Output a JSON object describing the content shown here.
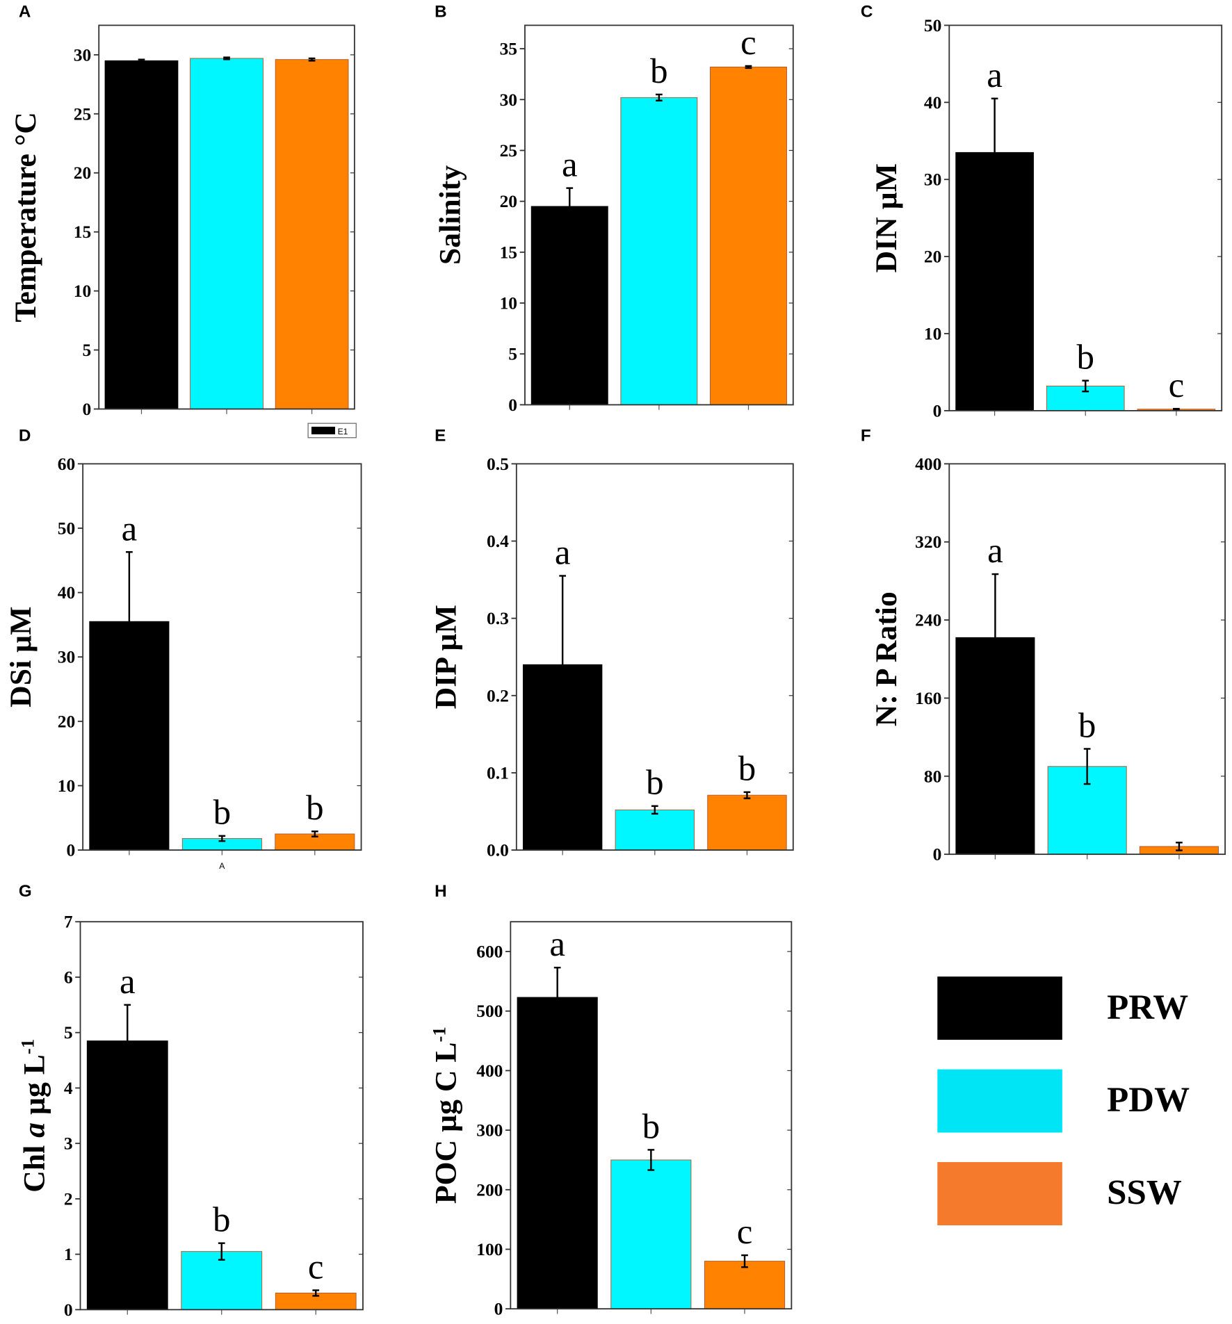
{
  "colors": {
    "PRW": "#000000",
    "PDW": "#00f7ff",
    "SSW": "#ff8200",
    "legend_PDW": "#00e5f5",
    "legend_SSW": "#f57a2c"
  },
  "legend": [
    {
      "label": "PRW",
      "color_key": "PRW"
    },
    {
      "label": "PDW",
      "color_key": "legend_PDW"
    },
    {
      "label": "SSW",
      "color_key": "legend_SSW"
    }
  ],
  "chart_data": [
    {
      "panel": "A",
      "type": "bar",
      "categories": [
        "PRW",
        "PDW",
        "SSW"
      ],
      "ylabel": [
        {
          "t": "Temperature °C"
        }
      ],
      "ylim": [
        0,
        32.5
      ],
      "ticks": [
        0,
        5,
        10,
        15,
        20,
        25,
        30
      ],
      "values": [
        29.5,
        29.7,
        29.6
      ],
      "errors": [
        0.1,
        0.08,
        0.1
      ],
      "letters": [
        "",
        "",
        ""
      ],
      "inset_legend": "E1"
    },
    {
      "panel": "B",
      "type": "bar",
      "categories": [
        "PRW",
        "PDW",
        "SSW"
      ],
      "ylabel": [
        {
          "t": "Salinity"
        }
      ],
      "ylim": [
        0,
        37.3
      ],
      "ticks": [
        0,
        5,
        10,
        15,
        20,
        25,
        30,
        35
      ],
      "values": [
        19.5,
        30.2,
        33.2
      ],
      "errors": [
        1.8,
        0.3,
        0.1
      ],
      "letters": [
        "a",
        "b",
        "c"
      ]
    },
    {
      "panel": "C",
      "type": "bar",
      "categories": [
        "PRW",
        "PDW",
        "SSW"
      ],
      "ylabel": [
        {
          "t": "DIN µM"
        }
      ],
      "ylim": [
        0,
        50
      ],
      "ticks": [
        0,
        10,
        20,
        30,
        40,
        50
      ],
      "values": [
        33.5,
        3.2,
        0.2
      ],
      "errors": [
        7.0,
        0.7,
        0.05
      ],
      "letters": [
        "a",
        "b",
        "c"
      ]
    },
    {
      "panel": "D",
      "type": "bar",
      "categories": [
        "PRW",
        "PDW",
        "SSW"
      ],
      "ylabel": [
        {
          "t": "DSi µM"
        }
      ],
      "ylim": [
        0,
        60
      ],
      "ticks": [
        0,
        10,
        20,
        30,
        40,
        50,
        60
      ],
      "values": [
        35.5,
        1.8,
        2.5
      ],
      "errors": [
        10.8,
        0.4,
        0.4
      ],
      "letters": [
        "a",
        "b",
        "b"
      ],
      "xtick_label": "A"
    },
    {
      "panel": "E",
      "type": "bar",
      "categories": [
        "PRW",
        "PDW",
        "SSW"
      ],
      "ylabel": [
        {
          "t": "DIP µM"
        }
      ],
      "ylim": [
        0,
        0.5
      ],
      "ticks": [
        "0.0",
        "0.1",
        "0.2",
        "0.3",
        "0.4",
        "0.5"
      ],
      "values": [
        0.24,
        0.052,
        0.071
      ],
      "errors": [
        0.115,
        0.005,
        0.004
      ],
      "letters": [
        "a",
        "b",
        "b"
      ]
    },
    {
      "panel": "F",
      "type": "bar",
      "categories": [
        "PRW",
        "PDW",
        "SSW"
      ],
      "ylabel": [
        {
          "t": "N: P Ratio"
        }
      ],
      "ylim": [
        0,
        400
      ],
      "ticks": [
        0,
        80,
        160,
        240,
        320,
        400
      ],
      "values": [
        222,
        90,
        8
      ],
      "errors": [
        65,
        18,
        4
      ],
      "letters": [
        "a",
        "b",
        ""
      ]
    },
    {
      "panel": "G",
      "type": "bar",
      "categories": [
        "PRW",
        "PDW",
        "SSW"
      ],
      "ylabel": [
        {
          "t": "Chl "
        },
        {
          "t": "a",
          "i": true
        },
        {
          "t": " µg L"
        },
        {
          "t": "-1",
          "sup": true
        }
      ],
      "ylim": [
        0,
        7
      ],
      "ticks": [
        0,
        1,
        2,
        3,
        4,
        5,
        6,
        7
      ],
      "values": [
        4.85,
        1.05,
        0.3
      ],
      "errors": [
        0.65,
        0.15,
        0.05
      ],
      "letters": [
        "a",
        "b",
        "c"
      ]
    },
    {
      "panel": "H",
      "type": "bar",
      "categories": [
        "PRW",
        "PDW",
        "SSW"
      ],
      "ylabel": [
        {
          "t": "POC  µg C L"
        },
        {
          "t": "-1",
          "sup": true
        }
      ],
      "ylim": [
        0,
        650
      ],
      "ticks": [
        0,
        100,
        200,
        300,
        400,
        500,
        600
      ],
      "values": [
        523,
        250,
        80
      ],
      "errors": [
        50,
        17,
        10
      ],
      "letters": [
        "a",
        "b",
        "c"
      ]
    }
  ]
}
